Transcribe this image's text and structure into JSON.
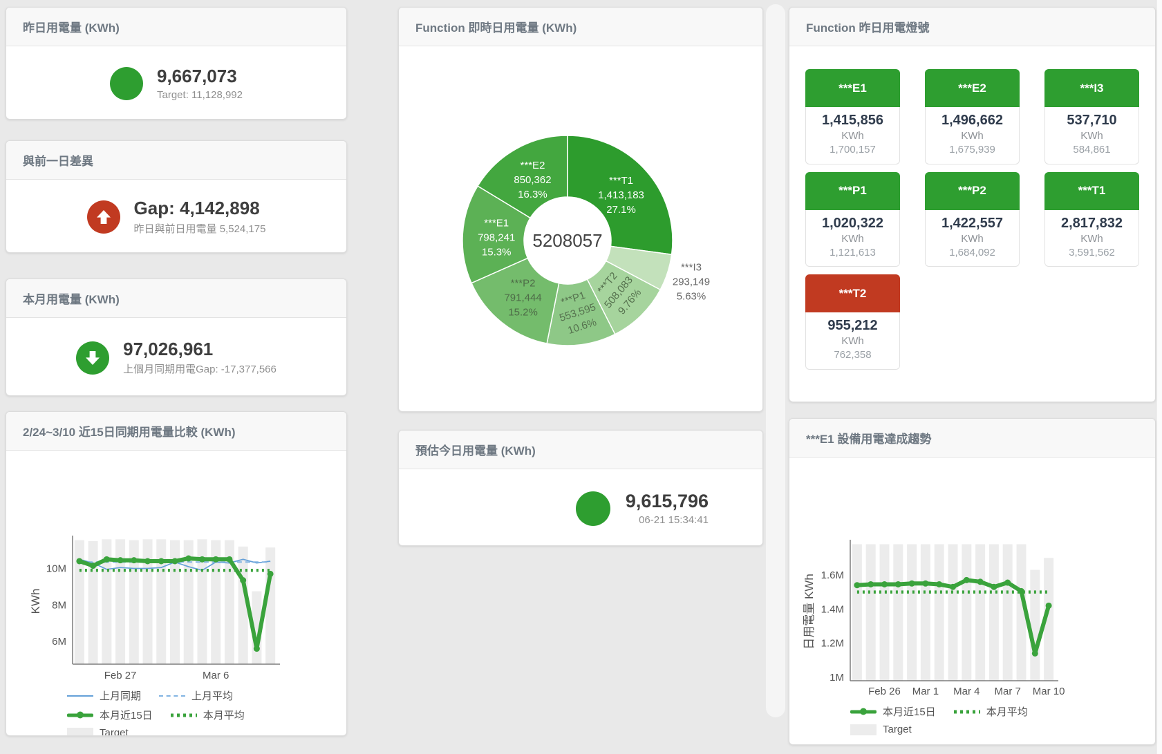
{
  "colors": {
    "status_green": "#2e9e30",
    "status_red": "#c13a21",
    "line_green": "#3aa33c",
    "line_blue": "#64a0d8",
    "line_blue_light": "#82b4e2",
    "target_bar": "#ececec"
  },
  "cards": {
    "yesterday": {
      "title": "昨日用電量 (KWh)",
      "value": "9,667,073",
      "sub": "Target: 11,128,992"
    },
    "gap": {
      "title": "與前一日差異",
      "value": "Gap: 4,142,898",
      "sub": "昨日與前日用電量 5,524,175"
    },
    "month": {
      "title": "本月用電量 (KWh)",
      "value": "97,026,961",
      "sub": "上個月同期用電Gap: -17,377,566"
    },
    "estimate": {
      "title": "預估今日用電量 (KWh)",
      "value": "9,615,796",
      "sub": "06-21 15:34:41"
    }
  },
  "donut_panel": {
    "title": "Function 即時日用電量 (KWh)"
  },
  "tiles_panel": {
    "title": "Function 昨日用電燈號",
    "tiles": [
      {
        "name": "***E1",
        "value": "1,415,856",
        "unit": "KWh",
        "target": "1,700,157",
        "status": "green"
      },
      {
        "name": "***E2",
        "value": "1,496,662",
        "unit": "KWh",
        "target": "1,675,939",
        "status": "green"
      },
      {
        "name": "***I3",
        "value": "537,710",
        "unit": "KWh",
        "target": "584,861",
        "status": "green"
      },
      {
        "name": "***P1",
        "value": "1,020,322",
        "unit": "KWh",
        "target": "1,121,613",
        "status": "green"
      },
      {
        "name": "***P2",
        "value": "1,422,557",
        "unit": "KWh",
        "target": "1,684,092",
        "status": "green"
      },
      {
        "name": "***T1",
        "value": "2,817,832",
        "unit": "KWh",
        "target": "3,591,562",
        "status": "green"
      },
      {
        "name": "***T2",
        "value": "955,212",
        "unit": "KWh",
        "target": "762,358",
        "status": "red"
      }
    ]
  },
  "compare_panel": {
    "title": "2/24~3/10 近15日同期用電量比較 (KWh)",
    "legend": [
      [
        {
          "label": "上月同期"
        },
        {
          "label": "上月平均"
        }
      ],
      [
        {
          "label": "本月近15日"
        },
        {
          "label": "本月平均"
        }
      ],
      [
        {
          "label": "Target"
        }
      ]
    ]
  },
  "trend_panel": {
    "title": "***E1 設備用電達成趨勢",
    "legend": [
      [
        {
          "label": "本月近15日"
        },
        {
          "label": "本月平均"
        }
      ],
      [
        {
          "label": "Target"
        }
      ]
    ]
  },
  "chart_data": [
    {
      "id": "donut",
      "type": "pie",
      "title": "Function 即時日用電量 (KWh)",
      "center_total": "5208057",
      "segments": [
        {
          "name": "***T1",
          "value": 1413183,
          "pct": 27.1,
          "pct_label": "27.1%",
          "color": "#2d9c2d",
          "label_color": "#ffffff",
          "label_pos": "inside"
        },
        {
          "name": "***I3",
          "value": 293149,
          "pct": 5.63,
          "pct_label": "5.63%",
          "color": "#c3e1bb",
          "label_color": "#666666",
          "label_pos": "outside"
        },
        {
          "name": "***T2",
          "value": 508083,
          "pct": 9.76,
          "pct_label": "9.76%",
          "color": "#a6d49d",
          "label_color": "#55714e",
          "label_pos": "inside",
          "label_rotate": -50
        },
        {
          "name": "***P1",
          "value": 553595,
          "pct": 10.6,
          "pct_label": "10.6%",
          "color": "#8ec887",
          "label_color": "#55714e",
          "label_pos": "inside",
          "label_rotate": -18
        },
        {
          "name": "***P2",
          "value": 791444,
          "pct": 15.2,
          "pct_label": "15.2%",
          "color": "#74bc6c",
          "label_color": "#4e6c48",
          "label_pos": "inside"
        },
        {
          "name": "***E1",
          "value": 798241,
          "pct": 15.3,
          "pct_label": "15.3%",
          "color": "#5cb155",
          "label_color": "#ffffff",
          "label_pos": "inside"
        },
        {
          "name": "***E2",
          "value": 850362,
          "pct": 16.3,
          "pct_label": "16.3%",
          "color": "#43a73f",
          "label_color": "#ffffff",
          "label_pos": "inside"
        }
      ]
    },
    {
      "id": "compare",
      "type": "line",
      "title": "2/24~3/10 近15日同期用電量比較 (KWh)",
      "ylabel": "KWh",
      "ylim": [
        4750000,
        11650000
      ],
      "yticks": [
        {
          "v": 6000000,
          "label": "6M"
        },
        {
          "v": 8000000,
          "label": "8M"
        },
        {
          "v": 10000000,
          "label": "10M"
        }
      ],
      "x_count": 15,
      "xticks": [
        {
          "i": 3,
          "label": "Feb 27"
        },
        {
          "i": 10,
          "label": "Mar 6"
        }
      ],
      "target_bars": {
        "name": "Target",
        "values": [
          11550000,
          11500000,
          11600000,
          11600000,
          11550000,
          11600000,
          11600000,
          11550000,
          11550000,
          11600000,
          11550000,
          11550000,
          11200000,
          8750000,
          11150000
        ]
      },
      "series": [
        {
          "name": "上月同期",
          "style": "solid-thin",
          "values": [
            10500000,
            10300000,
            9950000,
            10050000,
            10000000,
            10000000,
            10050000,
            10350000,
            10100000,
            9900000,
            10350000,
            10300000,
            10500000,
            10300000,
            10400000
          ]
        },
        {
          "name": "上月平均",
          "style": "dashed",
          "values": 10350000
        },
        {
          "name": "本月近15日",
          "style": "solid-thick",
          "values": [
            10400000,
            10150000,
            10500000,
            10450000,
            10450000,
            10400000,
            10400000,
            10400000,
            10550000,
            10500000,
            10500000,
            10500000,
            9350000,
            5600000,
            9700000
          ]
        },
        {
          "name": "本月平均",
          "style": "dotted",
          "values": 9900000
        }
      ]
    },
    {
      "id": "trend",
      "type": "line",
      "title": "***E1 設備用電達成趨勢",
      "ylabel": "日用電量 KWh",
      "ylim": [
        980000,
        1790000
      ],
      "yticks": [
        {
          "v": 1000000,
          "label": "1M"
        },
        {
          "v": 1200000,
          "label": "1.2M"
        },
        {
          "v": 1400000,
          "label": "1.4M"
        },
        {
          "v": 1600000,
          "label": "1.6M"
        }
      ],
      "x_count": 15,
      "xticks": [
        {
          "i": 2,
          "label": "Feb 26"
        },
        {
          "i": 5,
          "label": "Mar 1"
        },
        {
          "i": 8,
          "label": "Mar 4"
        },
        {
          "i": 11,
          "label": "Mar 7"
        },
        {
          "i": 14,
          "label": "Mar 10"
        }
      ],
      "target_bars": {
        "name": "Target",
        "values": [
          1780000,
          1780000,
          1780000,
          1780000,
          1780000,
          1780000,
          1780000,
          1780000,
          1780000,
          1780000,
          1780000,
          1780000,
          1780000,
          1630000,
          1700000
        ]
      },
      "series": [
        {
          "name": "本月近15日",
          "style": "solid-thick",
          "values": [
            1540000,
            1545000,
            1545000,
            1545000,
            1550000,
            1550000,
            1545000,
            1530000,
            1570000,
            1560000,
            1530000,
            1555000,
            1505000,
            1140000,
            1420000
          ]
        },
        {
          "name": "本月平均",
          "style": "dotted",
          "values": 1500000
        }
      ]
    }
  ]
}
